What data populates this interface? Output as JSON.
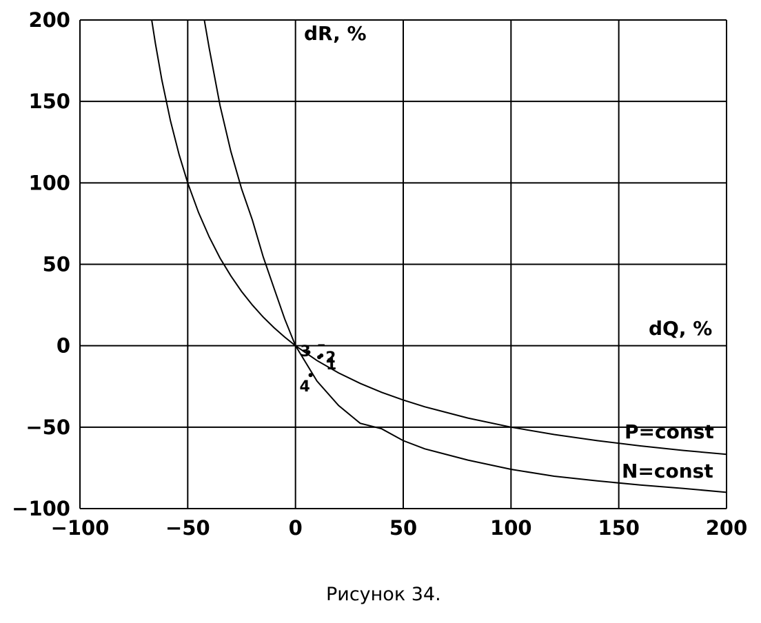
{
  "chart_data": {
    "type": "line",
    "xlabel": "dQ, %",
    "ylabel": "dR, %",
    "xlim": [
      -100,
      200
    ],
    "ylim": [
      -100,
      200
    ],
    "x_ticks": [
      -100,
      -50,
      0,
      50,
      100,
      150,
      200
    ],
    "y_ticks": [
      -100,
      -50,
      0,
      50,
      100,
      150,
      200
    ],
    "x_tick_labels": [
      "−100",
      "−50",
      "0",
      "50",
      "100",
      "150",
      "200"
    ],
    "y_tick_labels": [
      "−100",
      "−50",
      "0",
      "50",
      "100",
      "150",
      "200"
    ],
    "grid": true,
    "series": [
      {
        "name": "P=const",
        "x": [
          -66.7,
          -65,
          -62,
          -58,
          -54,
          -50,
          -45,
          -40,
          -35,
          -30,
          -25,
          -20,
          -15,
          -10,
          -5,
          0,
          10,
          20,
          30,
          40,
          50,
          60,
          80,
          100,
          120,
          140,
          160,
          180,
          200
        ],
        "y": [
          200,
          185.7,
          163.2,
          138.1,
          117.4,
          100,
          81.8,
          66.7,
          53.8,
          42.9,
          33.3,
          25,
          17.6,
          11.1,
          5.3,
          0,
          -9.1,
          -16.7,
          -23.1,
          -28.6,
          -33.3,
          -37.5,
          -44.4,
          -50,
          -54.5,
          -58.3,
          -61.5,
          -64.3,
          -66.7
        ]
      },
      {
        "name": "N=const",
        "x": [
          -42.3,
          -40,
          -35,
          -30,
          -25,
          -20,
          -15,
          -10,
          -5,
          0,
          10,
          20,
          30,
          40,
          50,
          60,
          80,
          100,
          120,
          140,
          160,
          180,
          200
        ],
        "y": [
          200,
          182.5,
          147.5,
          119.3,
          96.3,
          77.2,
          54.6,
          35.5,
          16.5,
          0,
          -21.7,
          -36.7,
          -47.6,
          -51.0,
          -58.3,
          -63.3,
          -70.2,
          -75.9,
          -80.1,
          -83.0,
          -85.5,
          -87.6,
          -90.0
        ]
      }
    ],
    "points": [
      {
        "label": "1",
        "x": 11,
        "y": -7
      },
      {
        "label": "2",
        "x": 12,
        "y": -6
      },
      {
        "label": "3",
        "x": 6,
        "y": -4
      },
      {
        "label": "4",
        "x": 7,
        "y": -18
      }
    ],
    "annotations": [
      "P=const",
      "N=const"
    ]
  },
  "caption": "Рисунок 34."
}
